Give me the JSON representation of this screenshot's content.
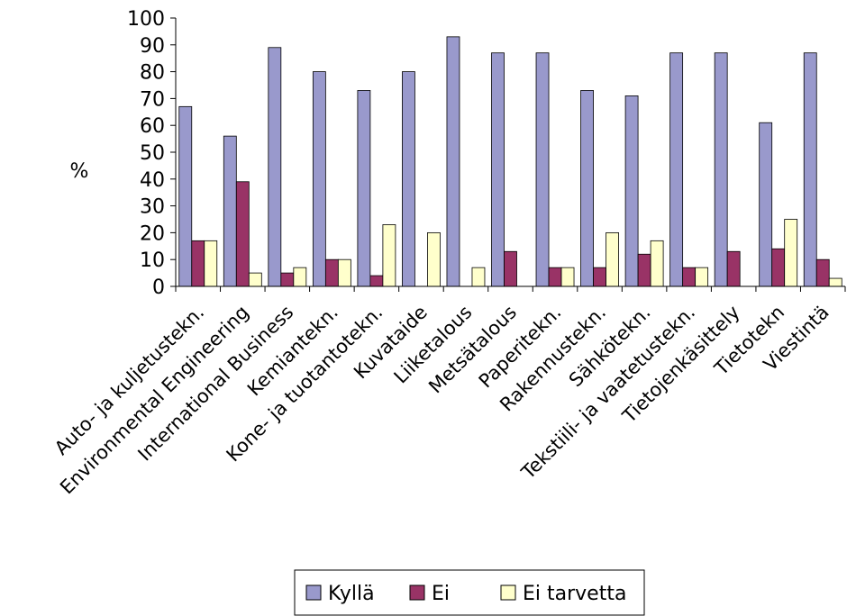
{
  "chart_data": {
    "type": "bar",
    "title": "",
    "xlabel": "",
    "ylabel": "%",
    "ylim": [
      0,
      100
    ],
    "yticks": [
      0,
      10,
      20,
      30,
      40,
      50,
      60,
      70,
      80,
      90,
      100
    ],
    "grid": false,
    "legend_position": "bottom",
    "categories": [
      "Auto- ja kuljetustekn.",
      "Environmental Engineering",
      "International Business",
      "Kemiantekn.",
      "Kone- ja tuotantotekn.",
      "Kuvataide",
      "Liiketalous",
      "Metsätalous",
      "Paperitekn.",
      "Rakennustekn.",
      "Sähkötekn.",
      "Tekstiili- ja vaatetustekn.",
      "Tietojenkäsittely",
      "Tietotekn",
      "Viestintä"
    ],
    "series": [
      {
        "name": "Kyllä",
        "color": "#9999cc",
        "values": [
          67,
          56,
          89,
          80,
          73,
          80,
          93,
          87,
          87,
          73,
          71,
          87,
          87,
          61,
          87
        ]
      },
      {
        "name": "Ei",
        "color": "#993366",
        "values": [
          17,
          39,
          5,
          10,
          4,
          0,
          0,
          13,
          7,
          7,
          12,
          7,
          13,
          14,
          10
        ]
      },
      {
        "name": "Ei tarvetta",
        "color": "#ffffcc",
        "values": [
          17,
          5,
          7,
          10,
          23,
          20,
          7,
          0,
          7,
          20,
          17,
          7,
          0,
          25,
          3
        ]
      }
    ]
  }
}
